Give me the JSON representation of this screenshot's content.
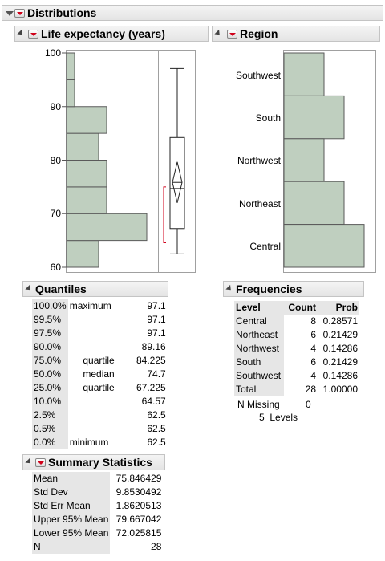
{
  "distributions": {
    "title": "Distributions"
  },
  "life": {
    "title": "Life expectancy (years)",
    "ticks": [
      "100",
      "90",
      "80",
      "70",
      "60"
    ]
  },
  "region": {
    "title": "Region",
    "categories": [
      "Southwest",
      "South",
      "Northwest",
      "Northeast",
      "Central"
    ]
  },
  "chart_data": [
    {
      "type": "bar",
      "title": "Life expectancy (years)",
      "orientation": "horizontal",
      "bins": [
        [
          60,
          65
        ],
        [
          65,
          70
        ],
        [
          70,
          75
        ],
        [
          75,
          80
        ],
        [
          80,
          85
        ],
        [
          85,
          90
        ],
        [
          90,
          95
        ],
        [
          95,
          100
        ]
      ],
      "values": [
        4,
        10,
        5,
        5,
        4,
        5,
        1,
        1
      ],
      "ylim": [
        60,
        100
      ],
      "boxplot": {
        "min": 62.5,
        "q1": 67.225,
        "median": 74.7,
        "q3": 84.225,
        "max": 97.1,
        "mean": 75.846429,
        "lower95": 72.025815,
        "upper95": 79.667042,
        "shortest_half": [
          64.57,
          75.0
        ]
      }
    },
    {
      "type": "bar",
      "title": "Region",
      "orientation": "horizontal",
      "categories": [
        "Central",
        "Northeast",
        "Northwest",
        "South",
        "Southwest"
      ],
      "values": [
        8,
        6,
        4,
        6,
        4
      ]
    }
  ],
  "quantiles": {
    "title": "Quantiles",
    "rows": [
      {
        "pct": "100.0%",
        "label": "maximum",
        "value": "97.1"
      },
      {
        "pct": "99.5%",
        "label": "",
        "value": "97.1"
      },
      {
        "pct": "97.5%",
        "label": "",
        "value": "97.1"
      },
      {
        "pct": "90.0%",
        "label": "",
        "value": "89.16"
      },
      {
        "pct": "75.0%",
        "label": "quartile",
        "value": "84.225"
      },
      {
        "pct": "50.0%",
        "label": "median",
        "value": "74.7"
      },
      {
        "pct": "25.0%",
        "label": "quartile",
        "value": "67.225"
      },
      {
        "pct": "10.0%",
        "label": "",
        "value": "64.57"
      },
      {
        "pct": "2.5%",
        "label": "",
        "value": "62.5"
      },
      {
        "pct": "0.5%",
        "label": "",
        "value": "62.5"
      },
      {
        "pct": "0.0%",
        "label": "minimum",
        "value": "62.5"
      }
    ]
  },
  "summary": {
    "title": "Summary Statistics",
    "rows": [
      {
        "label": "Mean",
        "value": "75.846429"
      },
      {
        "label": "Std Dev",
        "value": "9.8530492"
      },
      {
        "label": "Std Err Mean",
        "value": "1.8620513"
      },
      {
        "label": "Upper 95% Mean",
        "value": "79.667042"
      },
      {
        "label": "Lower 95% Mean",
        "value": "72.025815"
      },
      {
        "label": "N",
        "value": "28"
      }
    ]
  },
  "frequencies": {
    "title": "Frequencies",
    "headers": [
      "Level",
      "Count",
      "Prob"
    ],
    "rows": [
      {
        "level": "Central",
        "count": "8",
        "prob": "0.28571"
      },
      {
        "level": "Northeast",
        "count": "6",
        "prob": "0.21429"
      },
      {
        "level": "Northwest",
        "count": "4",
        "prob": "0.14286"
      },
      {
        "level": "South",
        "count": "6",
        "prob": "0.21429"
      },
      {
        "level": "Southwest",
        "count": "4",
        "prob": "0.14286"
      },
      {
        "level": "Total",
        "count": "28",
        "prob": "1.00000"
      }
    ],
    "missing_label": "N Missing",
    "missing_value": "0",
    "levels_text": "5  Levels"
  },
  "colors": {
    "bar_fill": "#bfcfbf",
    "bar_stroke": "#5a5a5a",
    "bracket": "#d0021b"
  }
}
